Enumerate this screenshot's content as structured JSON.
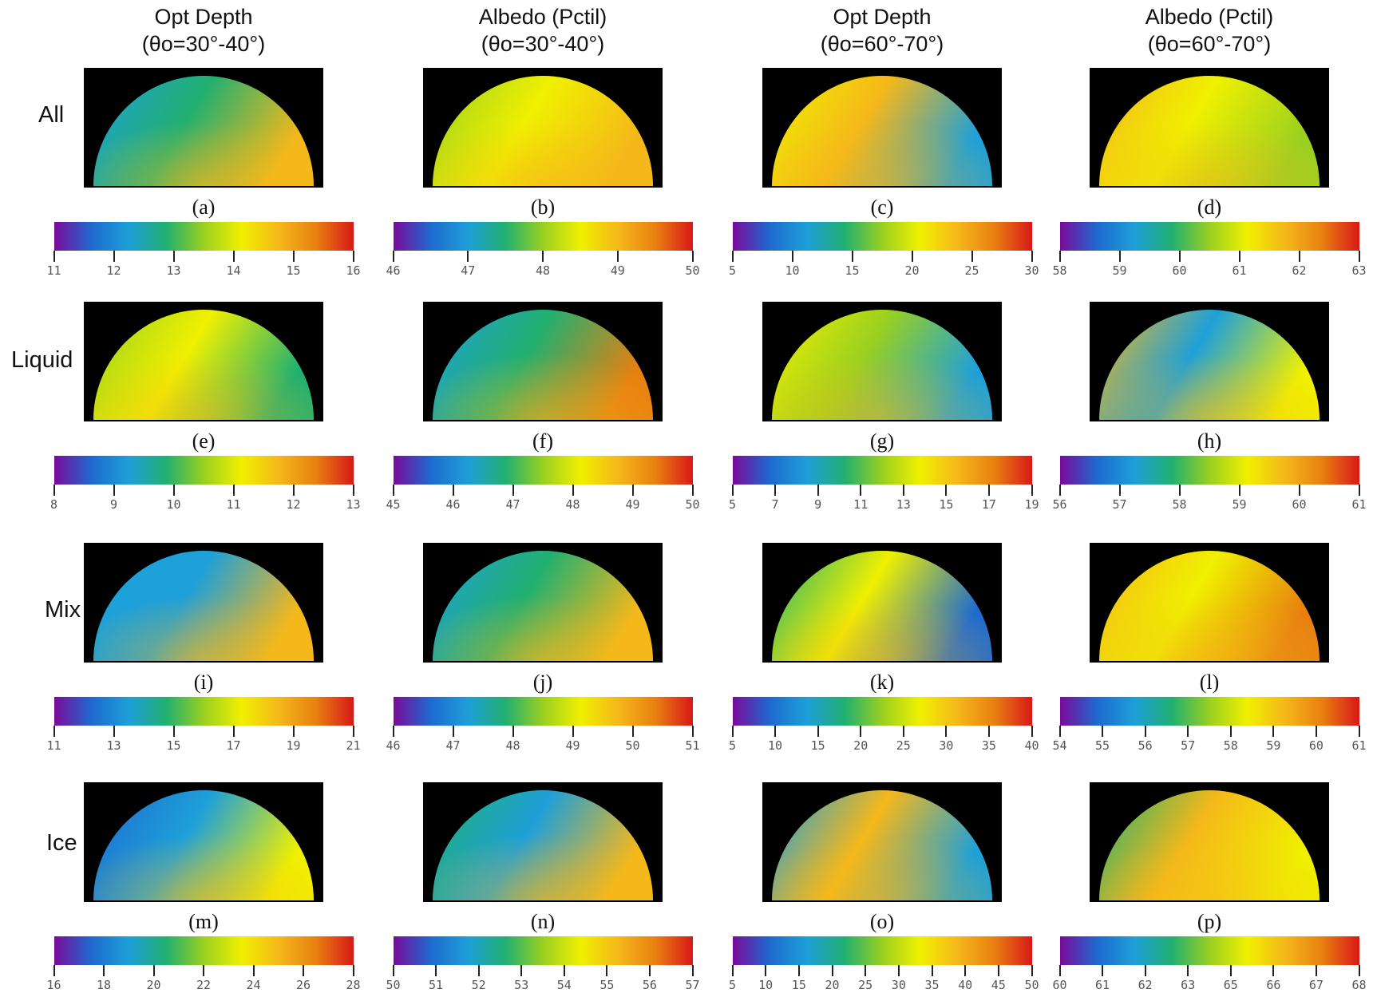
{
  "columns": [
    {
      "line1": "Opt Depth",
      "line2": "(θo=30°-40°)"
    },
    {
      "line1": "Albedo (Pctil)",
      "line2": "(θo=30°-40°)"
    },
    {
      "line1": "Opt Depth",
      "line2": "(θo=60°-70°)"
    },
    {
      "line1": "Albedo (Pctil)",
      "line2": "(θo=60°-70°)"
    }
  ],
  "rows": [
    "All",
    "Liquid",
    "Mix",
    "Ice"
  ],
  "panels": [
    {
      "label": "(a)",
      "ticks": [
        "11",
        "12",
        "13",
        "14",
        "15",
        "16"
      ]
    },
    {
      "label": "(b)",
      "ticks": [
        "46",
        "47",
        "48",
        "49",
        "50"
      ]
    },
    {
      "label": "(c)",
      "ticks": [
        "5",
        "10",
        "15",
        "20",
        "25",
        "30"
      ]
    },
    {
      "label": "(d)",
      "ticks": [
        "58",
        "59",
        "60",
        "61",
        "62",
        "63"
      ]
    },
    {
      "label": "(e)",
      "ticks": [
        "8",
        "9",
        "10",
        "11",
        "12",
        "13"
      ]
    },
    {
      "label": "(f)",
      "ticks": [
        "45",
        "46",
        "47",
        "48",
        "49",
        "50"
      ]
    },
    {
      "label": "(g)",
      "ticks": [
        "5",
        "7",
        "9",
        "11",
        "13",
        "15",
        "17",
        "19"
      ]
    },
    {
      "label": "(h)",
      "ticks": [
        "56",
        "57",
        "58",
        "59",
        "60",
        "61"
      ]
    },
    {
      "label": "(i)",
      "ticks": [
        "11",
        "13",
        "15",
        "17",
        "19",
        "21"
      ]
    },
    {
      "label": "(j)",
      "ticks": [
        "46",
        "47",
        "48",
        "49",
        "50",
        "51"
      ]
    },
    {
      "label": "(k)",
      "ticks": [
        "5",
        "10",
        "15",
        "20",
        "25",
        "30",
        "35",
        "40"
      ]
    },
    {
      "label": "(l)",
      "ticks": [
        "54",
        "55",
        "56",
        "57",
        "58",
        "59",
        "60",
        "61"
      ]
    },
    {
      "label": "(m)",
      "ticks": [
        "16",
        "18",
        "20",
        "22",
        "24",
        "26",
        "28"
      ]
    },
    {
      "label": "(n)",
      "ticks": [
        "50",
        "51",
        "52",
        "53",
        "54",
        "55",
        "56",
        "57"
      ]
    },
    {
      "label": "(o)",
      "ticks": [
        "5",
        "10",
        "15",
        "20",
        "25",
        "30",
        "35",
        "40",
        "45",
        "50"
      ]
    },
    {
      "label": "(p)",
      "ticks": [
        "60",
        "61",
        "62",
        "63",
        "65",
        "66",
        "67",
        "68"
      ]
    }
  ],
  "colors": {
    "panel_bg": "#000000",
    "colorbar": [
      "#7a0a9a",
      "#1e6ad0",
      "#1ea0d8",
      "#22b070",
      "#9ad020",
      "#f0f000",
      "#f5b81a",
      "#e88010",
      "#d81818"
    ]
  }
}
